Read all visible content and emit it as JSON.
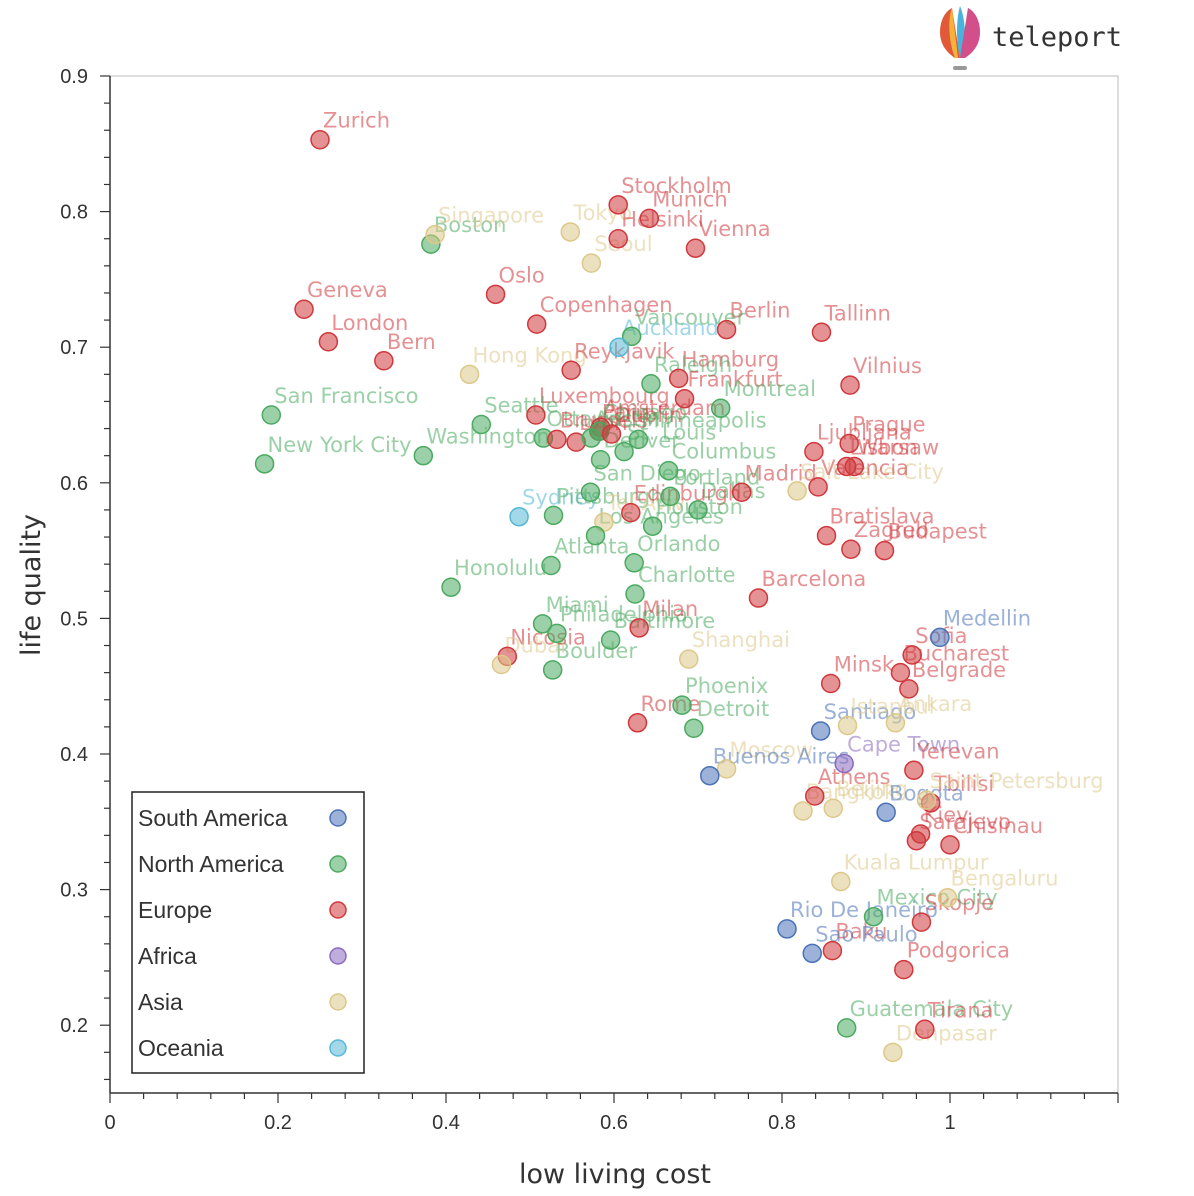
{
  "brand": {
    "name": "teleport",
    "icon": "balloon-logo-icon"
  },
  "colors": {
    "South America": "#4a72b8",
    "North America": "#4aaa60",
    "Europe": "#d0383c",
    "Africa": "#8a6abf",
    "Asia": "#ddc88a",
    "Oceania": "#55b8d6"
  },
  "chart_data": {
    "type": "scatter",
    "xlabel": "low living cost",
    "ylabel": "life quality",
    "xlim": [
      0,
      1.2
    ],
    "ylim": [
      0.15,
      0.9
    ],
    "xticks": [
      0,
      0.2,
      0.4,
      0.6,
      0.8,
      1
    ],
    "yticks": [
      0.2,
      0.3,
      0.4,
      0.5,
      0.6,
      0.7,
      0.8,
      0.9
    ],
    "grid": false,
    "legend": {
      "position": "bottom-left",
      "entries": [
        "South America",
        "North America",
        "Europe",
        "Africa",
        "Asia",
        "Oceania"
      ]
    },
    "points": [
      {
        "name": "Zurich",
        "x": 0.25,
        "y": 0.853,
        "region": "Europe"
      },
      {
        "name": "Geneva",
        "x": 0.231,
        "y": 0.728,
        "region": "Europe"
      },
      {
        "name": "London",
        "x": 0.26,
        "y": 0.704,
        "region": "Europe"
      },
      {
        "name": "Bern",
        "x": 0.326,
        "y": 0.69,
        "region": "Europe"
      },
      {
        "name": "San Francisco",
        "x": 0.192,
        "y": 0.65,
        "region": "North America"
      },
      {
        "name": "New York City",
        "x": 0.184,
        "y": 0.614,
        "region": "North America"
      },
      {
        "name": "Boston",
        "x": 0.382,
        "y": 0.776,
        "region": "North America"
      },
      {
        "name": "Singapore",
        "x": 0.387,
        "y": 0.783,
        "region": "Asia"
      },
      {
        "name": "Tokyo",
        "x": 0.548,
        "y": 0.785,
        "region": "Asia"
      },
      {
        "name": "Seoul",
        "x": 0.573,
        "y": 0.762,
        "region": "Asia"
      },
      {
        "name": "Stockholm",
        "x": 0.605,
        "y": 0.805,
        "region": "Europe"
      },
      {
        "name": "Munich",
        "x": 0.642,
        "y": 0.795,
        "region": "Europe"
      },
      {
        "name": "Helsinki",
        "x": 0.605,
        "y": 0.78,
        "region": "Europe"
      },
      {
        "name": "Vienna",
        "x": 0.697,
        "y": 0.773,
        "region": "Europe"
      },
      {
        "name": "Oslo",
        "x": 0.459,
        "y": 0.739,
        "region": "Europe"
      },
      {
        "name": "Copenhagen",
        "x": 0.508,
        "y": 0.717,
        "region": "Europe"
      },
      {
        "name": "Berlin",
        "x": 0.734,
        "y": 0.713,
        "region": "Europe"
      },
      {
        "name": "Tallinn",
        "x": 0.847,
        "y": 0.711,
        "region": "Europe"
      },
      {
        "name": "Vancouver",
        "x": 0.621,
        "y": 0.708,
        "region": "North America"
      },
      {
        "name": "Auckland",
        "x": 0.606,
        "y": 0.7,
        "region": "Oceania"
      },
      {
        "name": "Hong Kong",
        "x": 0.428,
        "y": 0.68,
        "region": "Asia"
      },
      {
        "name": "Reykjavik",
        "x": 0.549,
        "y": 0.683,
        "region": "Europe"
      },
      {
        "name": "Hamburg",
        "x": 0.677,
        "y": 0.677,
        "region": "Europe"
      },
      {
        "name": "Raleigh",
        "x": 0.644,
        "y": 0.673,
        "region": "North America"
      },
      {
        "name": "Vilnius",
        "x": 0.881,
        "y": 0.672,
        "region": "Europe"
      },
      {
        "name": "Frankfurt",
        "x": 0.684,
        "y": 0.662,
        "region": "Europe"
      },
      {
        "name": "Montreal",
        "x": 0.727,
        "y": 0.655,
        "region": "North America"
      },
      {
        "name": "Luxembourg",
        "x": 0.507,
        "y": 0.65,
        "region": "Europe"
      },
      {
        "name": "Seattle",
        "x": 0.442,
        "y": 0.643,
        "region": "North America"
      },
      {
        "name": "Amsterdam",
        "x": 0.584,
        "y": 0.641,
        "region": "Europe"
      },
      {
        "name": "Paris",
        "x": 0.582,
        "y": 0.638,
        "region": "Europe"
      },
      {
        "name": "Chicago",
        "x": 0.583,
        "y": 0.638,
        "region": "North America"
      },
      {
        "name": "Dublin",
        "x": 0.597,
        "y": 0.636,
        "region": "Europe"
      },
      {
        "name": "Minneapolis",
        "x": 0.629,
        "y": 0.632,
        "region": "North America"
      },
      {
        "name": "Washington",
        "x": 0.373,
        "y": 0.62,
        "region": "North America"
      },
      {
        "name": "Ottawa",
        "x": 0.516,
        "y": 0.633,
        "region": "North America"
      },
      {
        "name": "Brussels",
        "x": 0.532,
        "y": 0.632,
        "region": "Europe"
      },
      {
        "name": "Lyon",
        "x": 0.555,
        "y": 0.63,
        "region": "Europe"
      },
      {
        "name": "Austin",
        "x": 0.573,
        "y": 0.633,
        "region": "North America"
      },
      {
        "name": "St. Louis",
        "x": 0.612,
        "y": 0.623,
        "region": "North America"
      },
      {
        "name": "Ljubljana",
        "x": 0.838,
        "y": 0.623,
        "region": "Europe"
      },
      {
        "name": "Prague",
        "x": 0.88,
        "y": 0.629,
        "region": "Europe"
      },
      {
        "name": "Warsaw",
        "x": 0.886,
        "y": 0.612,
        "region": "Europe"
      },
      {
        "name": "Lisbon",
        "x": 0.877,
        "y": 0.612,
        "region": "Europe"
      },
      {
        "name": "Denver",
        "x": 0.584,
        "y": 0.617,
        "region": "North America"
      },
      {
        "name": "Columbus",
        "x": 0.665,
        "y": 0.609,
        "region": "North America"
      },
      {
        "name": "Madrid",
        "x": 0.752,
        "y": 0.593,
        "region": "Europe"
      },
      {
        "name": "Salt Lake City",
        "x": 0.818,
        "y": 0.594,
        "region": "Asia"
      },
      {
        "name": "Valencia",
        "x": 0.843,
        "y": 0.597,
        "region": "Europe"
      },
      {
        "name": "San Diego",
        "x": 0.572,
        "y": 0.593,
        "region": "North America"
      },
      {
        "name": "Portland",
        "x": 0.667,
        "y": 0.59,
        "region": "North America"
      },
      {
        "name": "Dallas",
        "x": 0.7,
        "y": 0.58,
        "region": "North America"
      },
      {
        "name": "Sydney",
        "x": 0.487,
        "y": 0.575,
        "region": "Oceania"
      },
      {
        "name": "Pittsburgh",
        "x": 0.528,
        "y": 0.576,
        "region": "North America"
      },
      {
        "name": "Tel Aviv",
        "x": 0.588,
        "y": 0.571,
        "region": "Asia"
      },
      {
        "name": "Edinburgh",
        "x": 0.62,
        "y": 0.578,
        "region": "Europe"
      },
      {
        "name": "Houston",
        "x": 0.646,
        "y": 0.568,
        "region": "North America"
      },
      {
        "name": "Los Angeles",
        "x": 0.578,
        "y": 0.561,
        "region": "North America"
      },
      {
        "name": "Bratislava",
        "x": 0.853,
        "y": 0.561,
        "region": "Europe"
      },
      {
        "name": "Zagreb",
        "x": 0.882,
        "y": 0.551,
        "region": "Europe"
      },
      {
        "name": "Budapest",
        "x": 0.922,
        "y": 0.55,
        "region": "Europe"
      },
      {
        "name": "Orlando",
        "x": 0.624,
        "y": 0.541,
        "region": "North America"
      },
      {
        "name": "Honolulu",
        "x": 0.406,
        "y": 0.523,
        "region": "North America"
      },
      {
        "name": "Atlanta",
        "x": 0.525,
        "y": 0.539,
        "region": "North America"
      },
      {
        "name": "Charlotte",
        "x": 0.625,
        "y": 0.518,
        "region": "North America"
      },
      {
        "name": "Barcelona",
        "x": 0.772,
        "y": 0.515,
        "region": "Europe"
      },
      {
        "name": "Miami",
        "x": 0.515,
        "y": 0.496,
        "region": "North America"
      },
      {
        "name": "Philadelphia",
        "x": 0.532,
        "y": 0.489,
        "region": "North America"
      },
      {
        "name": "Milan",
        "x": 0.63,
        "y": 0.493,
        "region": "Europe"
      },
      {
        "name": "Boulder",
        "x": 0.527,
        "y": 0.462,
        "region": "North America"
      },
      {
        "name": "Nicosia",
        "x": 0.473,
        "y": 0.472,
        "region": "Europe"
      },
      {
        "name": "Dubai",
        "x": 0.466,
        "y": 0.466,
        "region": "Asia"
      },
      {
        "name": "Baltimore",
        "x": 0.596,
        "y": 0.484,
        "region": "North America"
      },
      {
        "name": "Shanghai",
        "x": 0.689,
        "y": 0.47,
        "region": "Asia"
      },
      {
        "name": "Medellin",
        "x": 0.988,
        "y": 0.486,
        "region": "South America"
      },
      {
        "name": "Sofia",
        "x": 0.955,
        "y": 0.473,
        "region": "Europe"
      },
      {
        "name": "Bucharest",
        "x": 0.941,
        "y": 0.46,
        "region": "Europe"
      },
      {
        "name": "Belgrade",
        "x": 0.951,
        "y": 0.448,
        "region": "Europe"
      },
      {
        "name": "Minsk",
        "x": 0.858,
        "y": 0.452,
        "region": "Europe"
      },
      {
        "name": "Phoenix",
        "x": 0.681,
        "y": 0.436,
        "region": "North America"
      },
      {
        "name": "Rome",
        "x": 0.628,
        "y": 0.423,
        "region": "Europe"
      },
      {
        "name": "Detroit",
        "x": 0.695,
        "y": 0.419,
        "region": "North America"
      },
      {
        "name": "Santiago",
        "x": 0.846,
        "y": 0.417,
        "region": "South America"
      },
      {
        "name": "Istanbul",
        "x": 0.878,
        "y": 0.421,
        "region": "Asia"
      },
      {
        "name": "Ankara",
        "x": 0.935,
        "y": 0.423,
        "region": "Asia"
      },
      {
        "name": "Cape Town",
        "x": 0.874,
        "y": 0.393,
        "region": "Africa"
      },
      {
        "name": "Yerevan",
        "x": 0.957,
        "y": 0.388,
        "region": "Europe"
      },
      {
        "name": "Moscow",
        "x": 0.734,
        "y": 0.389,
        "region": "Asia"
      },
      {
        "name": "Buenos Aires",
        "x": 0.714,
        "y": 0.384,
        "region": "South America"
      },
      {
        "name": "Athens",
        "x": 0.839,
        "y": 0.369,
        "region": "Europe"
      },
      {
        "name": "Tbilisi",
        "x": 0.977,
        "y": 0.364,
        "region": "Europe"
      },
      {
        "name": "Saint Petersburg",
        "x": 0.972,
        "y": 0.366,
        "region": "Asia"
      },
      {
        "name": "Kiev",
        "x": 0.965,
        "y": 0.341,
        "region": "Europe"
      },
      {
        "name": "Bangkok",
        "x": 0.825,
        "y": 0.358,
        "region": "Asia"
      },
      {
        "name": "Beijing",
        "x": 0.861,
        "y": 0.36,
        "region": "Asia"
      },
      {
        "name": "Bogota",
        "x": 0.924,
        "y": 0.357,
        "region": "South America"
      },
      {
        "name": "Sarajevo",
        "x": 0.96,
        "y": 0.336,
        "region": "Europe"
      },
      {
        "name": "Chisinau",
        "x": 1.0,
        "y": 0.333,
        "region": "Europe"
      },
      {
        "name": "Kuala Lumpur",
        "x": 0.87,
        "y": 0.306,
        "region": "Asia"
      },
      {
        "name": "Bengaluru",
        "x": 0.997,
        "y": 0.294,
        "region": "Asia"
      },
      {
        "name": "Mexico City",
        "x": 0.909,
        "y": 0.28,
        "region": "North America"
      },
      {
        "name": "Skopje",
        "x": 0.966,
        "y": 0.276,
        "region": "Europe"
      },
      {
        "name": "Rio De Janeiro",
        "x": 0.806,
        "y": 0.271,
        "region": "South America"
      },
      {
        "name": "Baku",
        "x": 0.86,
        "y": 0.255,
        "region": "Europe"
      },
      {
        "name": "Sao Paulo",
        "x": 0.836,
        "y": 0.253,
        "region": "South America"
      },
      {
        "name": "Podgorica",
        "x": 0.945,
        "y": 0.241,
        "region": "Europe"
      },
      {
        "name": "Guatemala City",
        "x": 0.877,
        "y": 0.198,
        "region": "North America"
      },
      {
        "name": "Tirana",
        "x": 0.97,
        "y": 0.197,
        "region": "Europe"
      },
      {
        "name": "Denpasar",
        "x": 0.932,
        "y": 0.18,
        "region": "Asia"
      }
    ]
  }
}
